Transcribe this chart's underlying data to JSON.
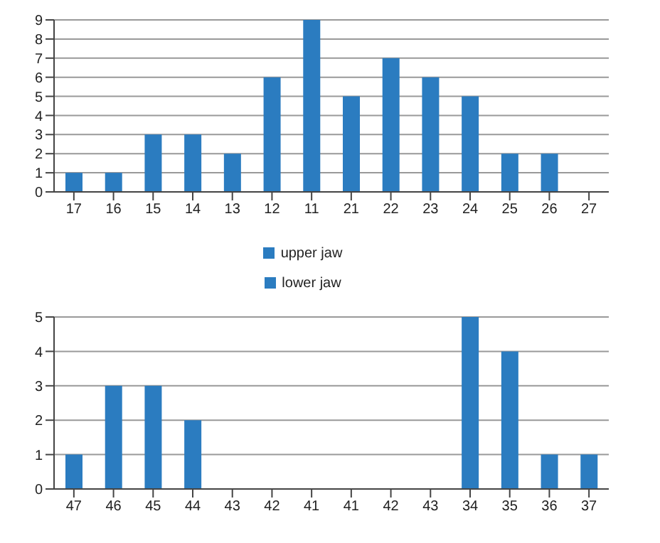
{
  "chart_data": [
    {
      "type": "bar",
      "categories": [
        "17",
        "16",
        "15",
        "14",
        "13",
        "12",
        "11",
        "21",
        "22",
        "23",
        "24",
        "25",
        "26",
        "27"
      ],
      "series": [
        {
          "name": "upper jaw",
          "color": "#2b7cc0",
          "values": [
            1,
            1,
            3,
            3,
            2,
            6,
            9,
            5,
            7,
            6,
            5,
            2,
            2,
            0
          ]
        }
      ],
      "ylim": [
        0,
        9
      ],
      "yticks": [
        0,
        1,
        2,
        3,
        4,
        5,
        6,
        7,
        8,
        9
      ],
      "grid": "y",
      "legend": "bottom"
    },
    {
      "type": "bar",
      "categories": [
        "47",
        "46",
        "45",
        "44",
        "43",
        "42",
        "41",
        "41",
        "42",
        "43",
        "34",
        "35",
        "36",
        "37"
      ],
      "series": [
        {
          "name": "lower jaw",
          "color": "#2b7cc0",
          "values": [
            1,
            3,
            3,
            2,
            0,
            0,
            0,
            0,
            0,
            0,
            5,
            4,
            1,
            1
          ]
        }
      ],
      "ylim": [
        0,
        5
      ],
      "yticks": [
        0,
        1,
        2,
        3,
        4,
        5
      ],
      "grid": "y",
      "legend": "top"
    }
  ]
}
